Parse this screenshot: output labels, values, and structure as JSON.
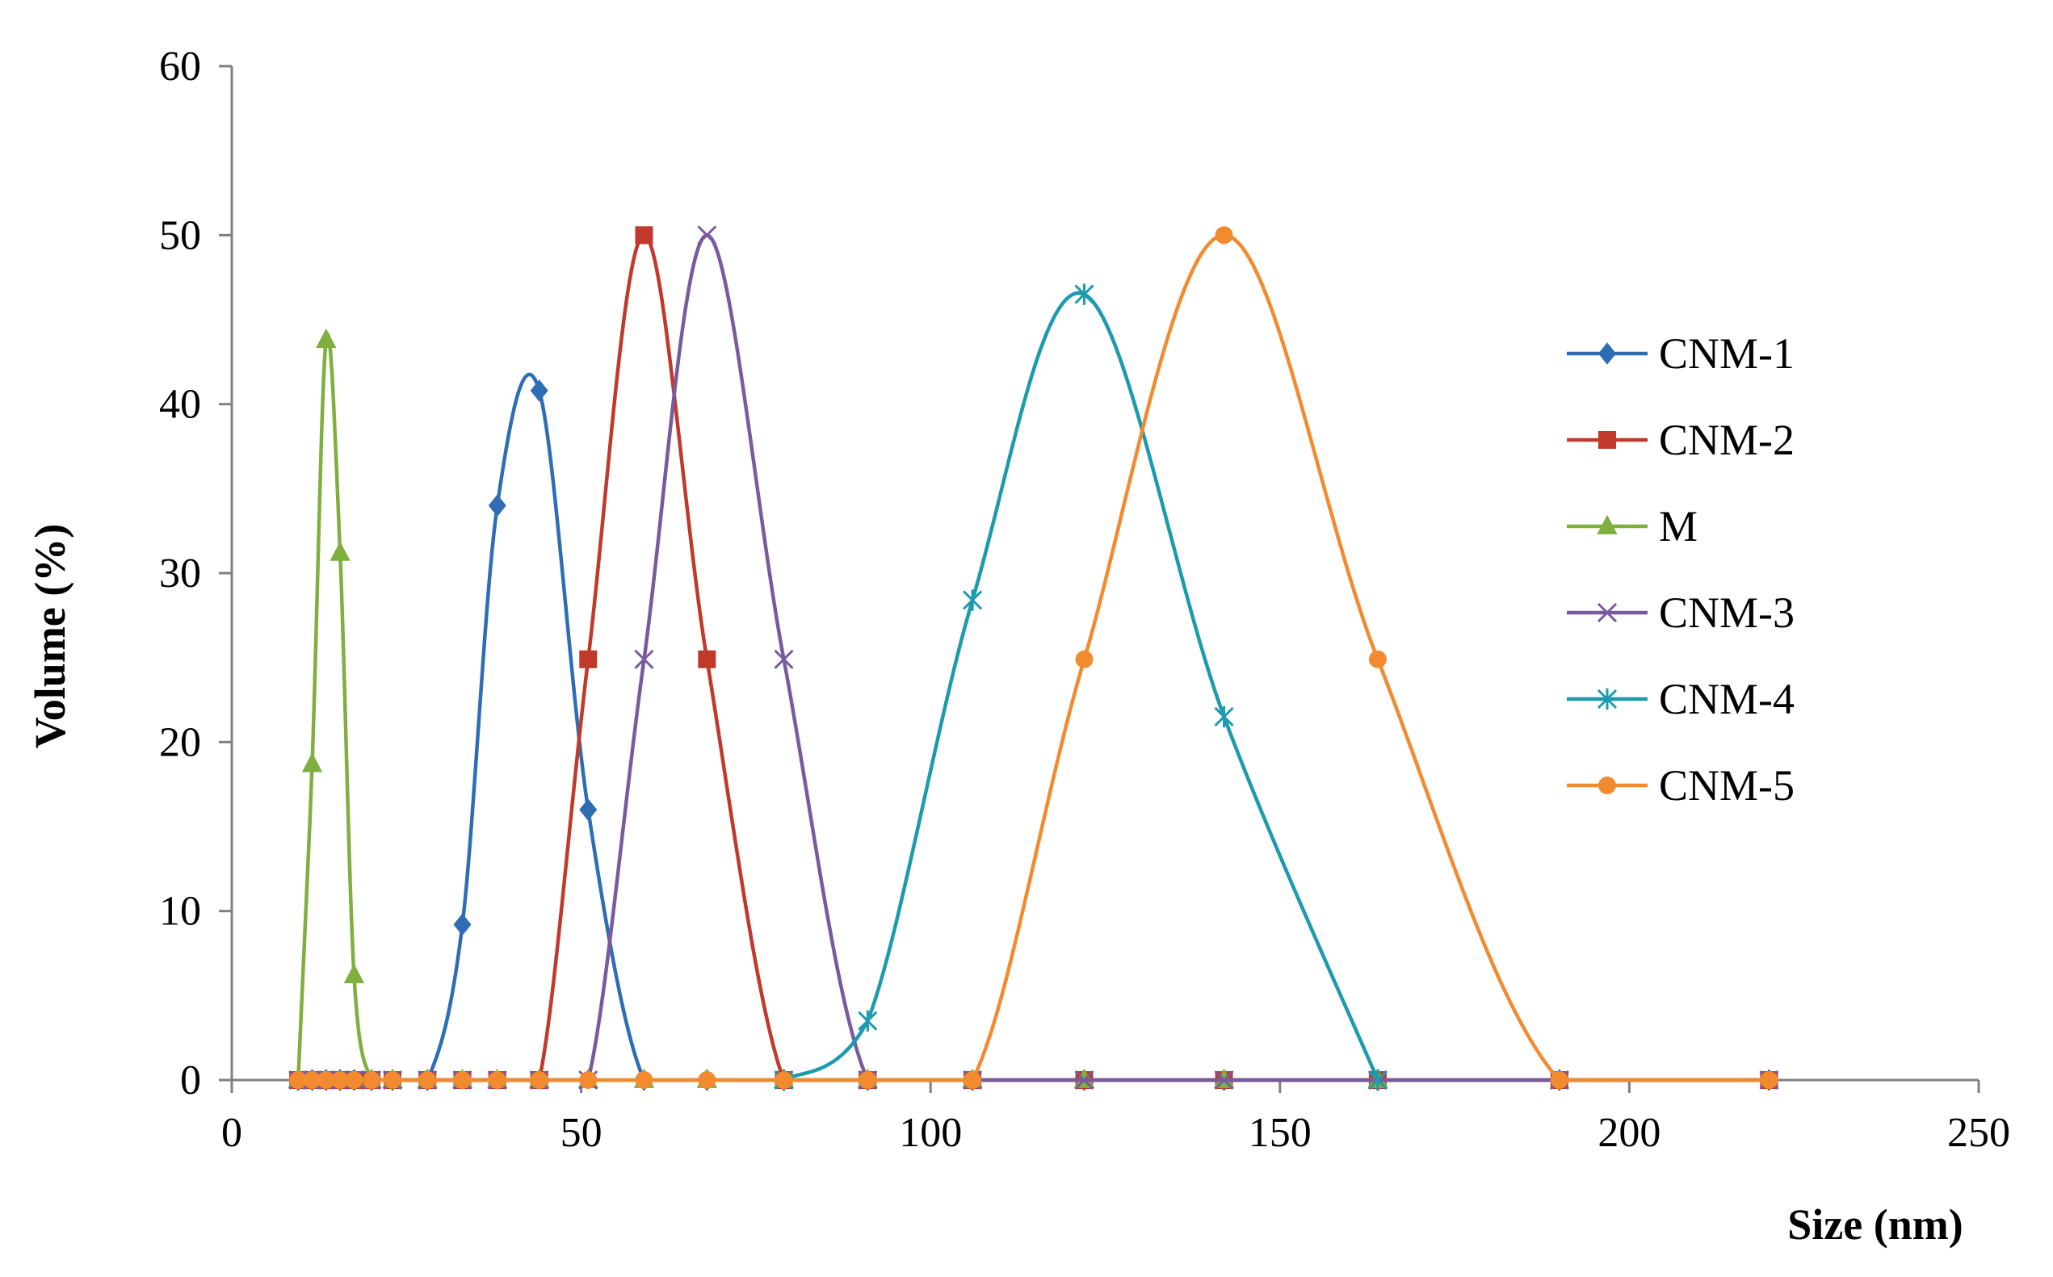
{
  "chart_data": {
    "type": "line",
    "title": "",
    "xlabel": "Size (nm)",
    "ylabel": "Volume (%)",
    "xlim": [
      0,
      250
    ],
    "ylim": [
      0,
      60
    ],
    "x_ticks": [
      0,
      50,
      100,
      150,
      200,
      250
    ],
    "y_ticks": [
      0,
      10,
      20,
      30,
      40,
      50,
      60
    ],
    "grid": false,
    "legend_position": "right",
    "series": [
      {
        "name": "CNM-1",
        "color": "#2E6DB4",
        "marker": "diamond",
        "x": [
          9.5,
          11.5,
          13.5,
          15.5,
          17.5,
          20,
          23,
          28,
          33,
          38,
          44,
          51,
          59,
          68,
          79,
          91,
          106,
          122,
          142,
          164,
          190,
          220
        ],
        "y": [
          0,
          0,
          0,
          0,
          0,
          0,
          0,
          0,
          9.2,
          34,
          40.8,
          16,
          0,
          0,
          0,
          0,
          0,
          0,
          0,
          0,
          0,
          0
        ]
      },
      {
        "name": "CNM-2",
        "color": "#C0392B",
        "marker": "square",
        "x": [
          9.5,
          11.5,
          13.5,
          15.5,
          17.5,
          20,
          23,
          28,
          33,
          38,
          44,
          51,
          59,
          68,
          79,
          91,
          106,
          122,
          142,
          164,
          190,
          220
        ],
        "y": [
          0,
          0,
          0,
          0,
          0,
          0,
          0,
          0,
          0,
          0,
          0,
          24.9,
          50,
          24.9,
          0,
          0,
          0,
          0,
          0,
          0,
          0,
          0
        ]
      },
      {
        "name": "M",
        "color": "#7FAF3F",
        "marker": "triangle",
        "x": [
          9.5,
          11.5,
          13.5,
          15.5,
          17.5,
          20,
          23,
          28,
          33,
          38,
          44,
          51,
          59,
          68,
          79,
          91,
          106,
          122,
          142,
          164
        ],
        "y": [
          0,
          18.7,
          43.8,
          31.2,
          6.2,
          0,
          0,
          0,
          0,
          0,
          0,
          0,
          0,
          0,
          0,
          0,
          0,
          0,
          0,
          0
        ]
      },
      {
        "name": "CNM-3",
        "color": "#7A5A9E",
        "marker": "x",
        "x": [
          9.5,
          11.5,
          13.5,
          15.5,
          17.5,
          20,
          23,
          28,
          33,
          38,
          44,
          51,
          59,
          68,
          79,
          91,
          106,
          122,
          142,
          164,
          190,
          220
        ],
        "y": [
          0,
          0,
          0,
          0,
          0,
          0,
          0,
          0,
          0,
          0,
          0,
          0,
          24.9,
          50,
          24.9,
          0,
          0,
          0,
          0,
          0,
          0,
          0
        ]
      },
      {
        "name": "CNM-4",
        "color": "#1C9AAE",
        "marker": "star",
        "x": [
          79,
          91,
          106,
          122,
          142,
          164
        ],
        "y": [
          0,
          3.5,
          28.4,
          46.5,
          21.5,
          0
        ]
      },
      {
        "name": "CNM-5",
        "color": "#F28A30",
        "marker": "circle",
        "x": [
          9.5,
          11.5,
          13.5,
          15.5,
          17.5,
          20,
          23,
          28,
          33,
          38,
          44,
          51,
          59,
          68,
          79,
          91,
          106,
          122,
          142,
          164,
          190,
          220
        ],
        "y": [
          0,
          0,
          0,
          0,
          0,
          0,
          0,
          0,
          0,
          0,
          0,
          0,
          0,
          0,
          0,
          0,
          0,
          24.9,
          50,
          24.9,
          0,
          0
        ]
      }
    ]
  }
}
